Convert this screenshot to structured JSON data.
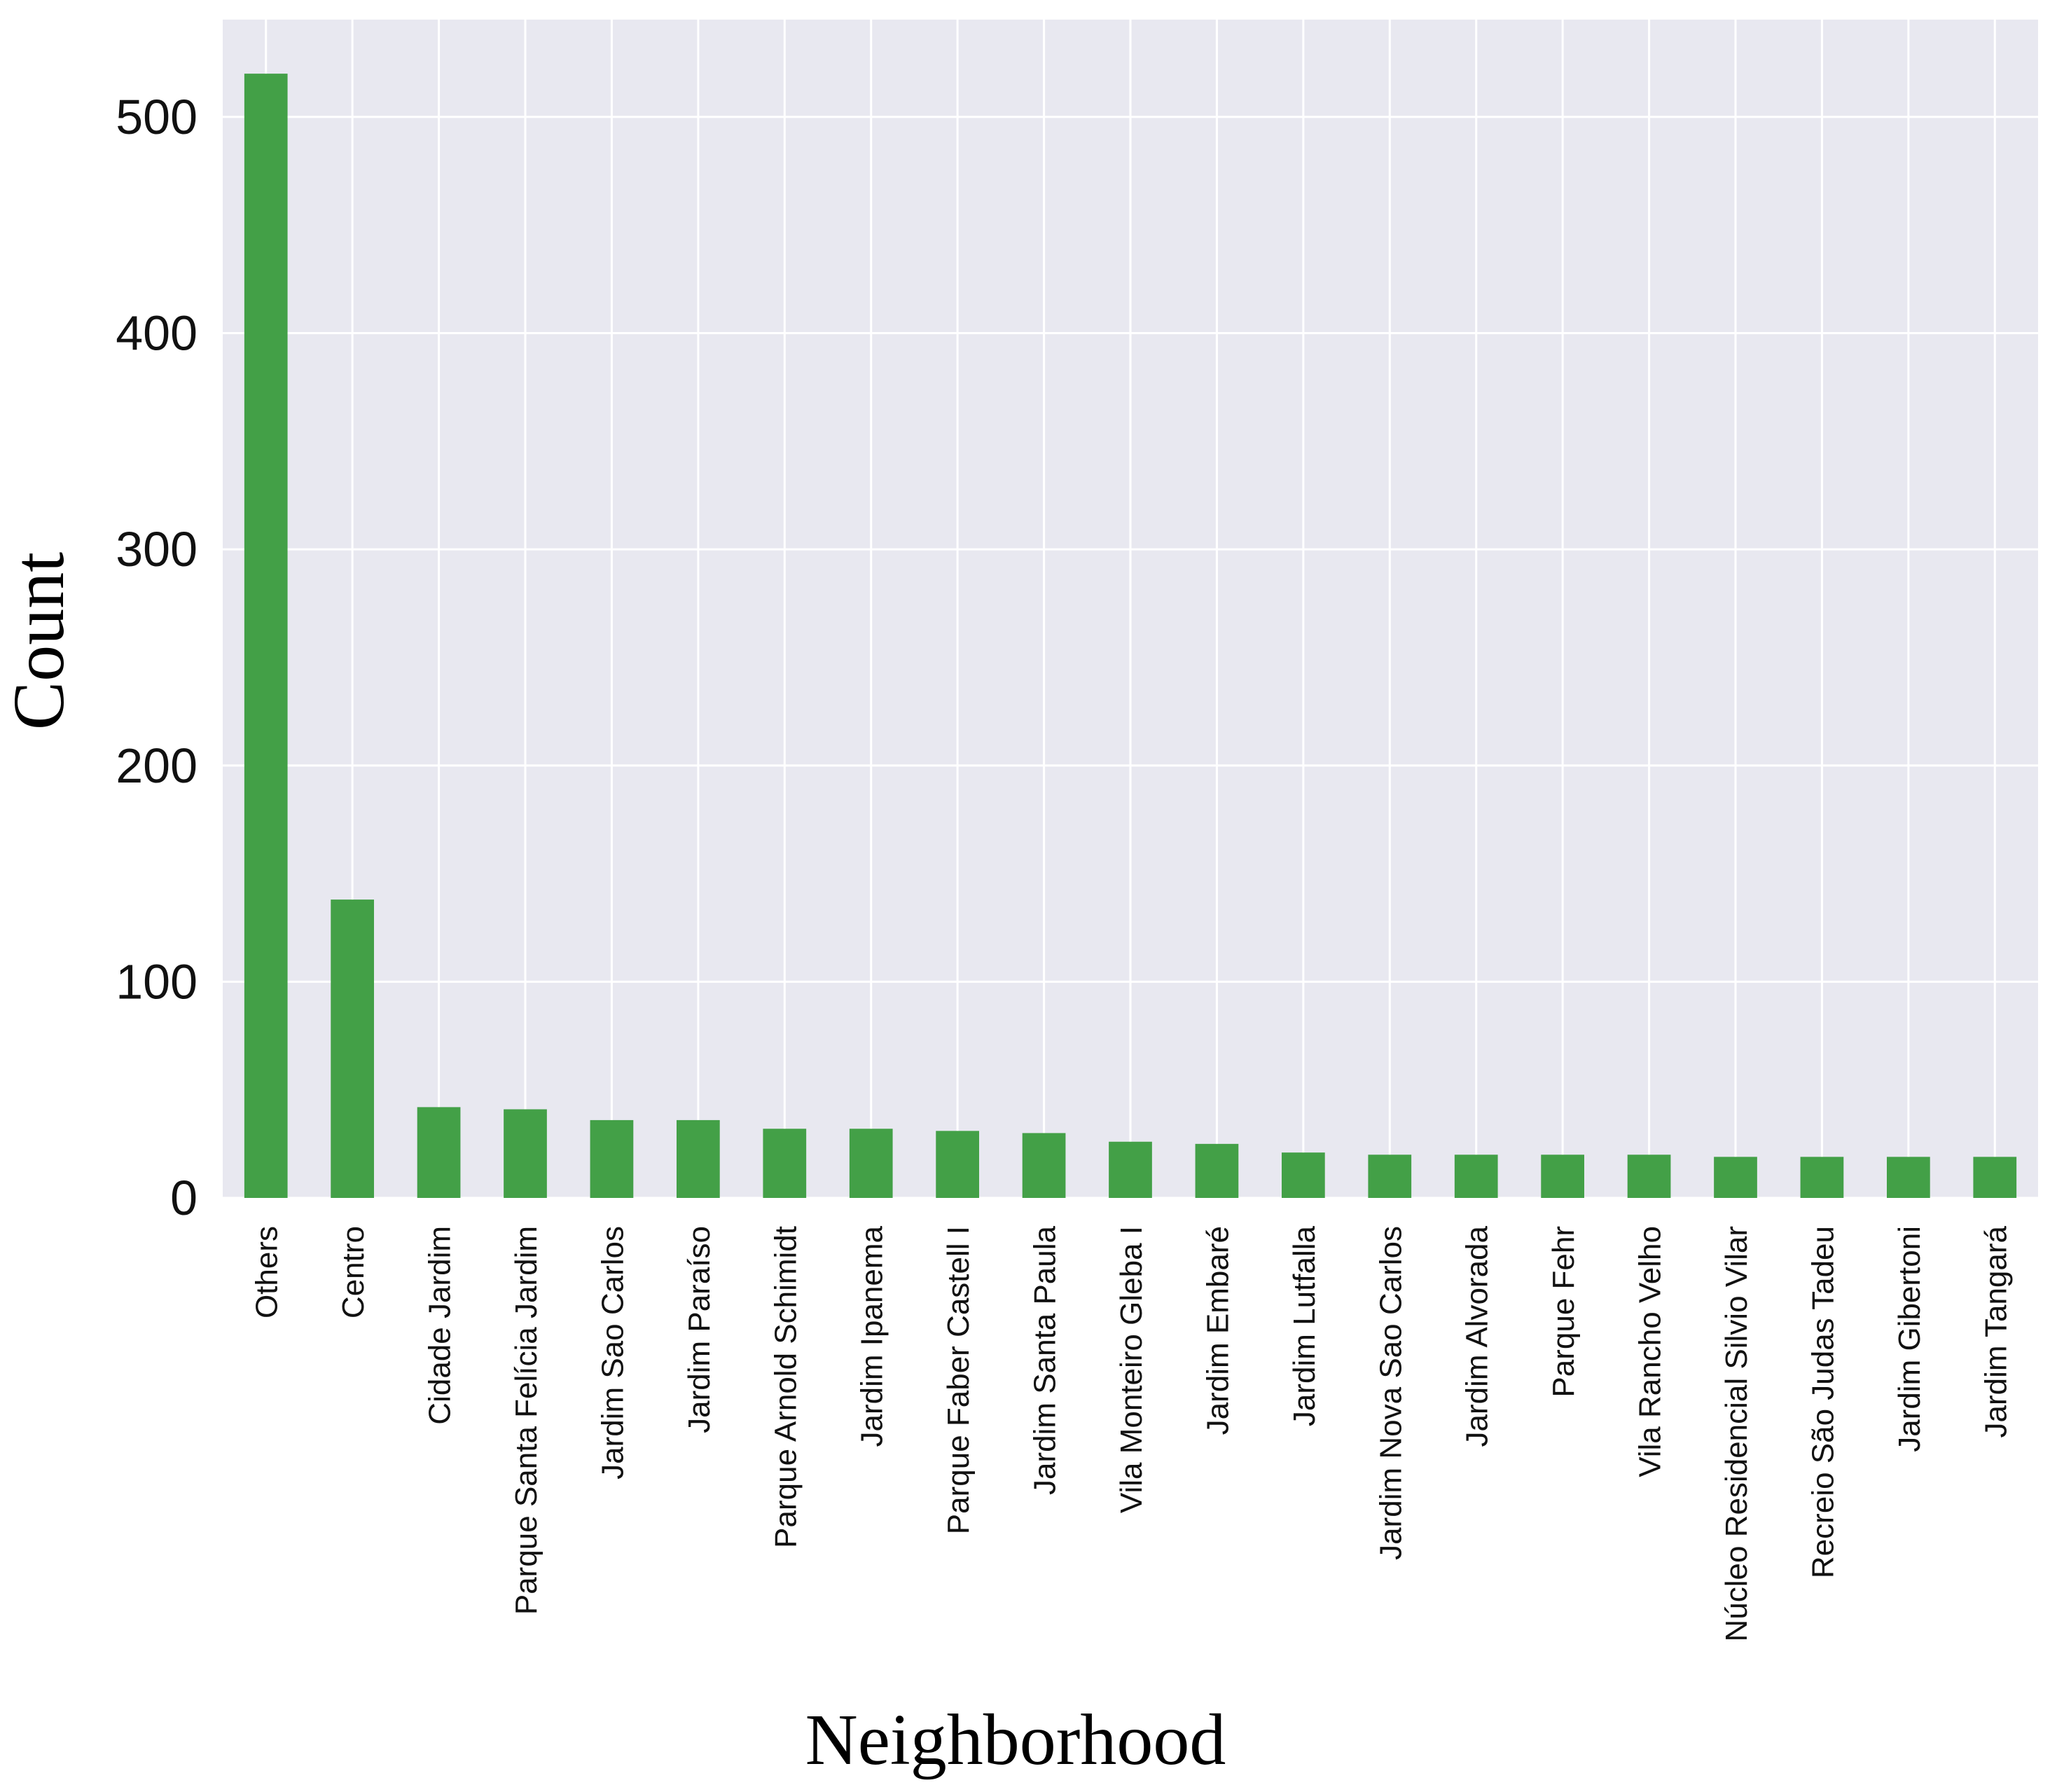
{
  "chart_data": {
    "type": "bar",
    "title": "",
    "xlabel": "Neighborhood",
    "ylabel": "Count",
    "ylim": [
      0,
      545
    ],
    "yticks": [
      0,
      100,
      200,
      300,
      400,
      500
    ],
    "grid": true,
    "bar_color": "#43a047",
    "background_color": "#e8e8f0",
    "categories": [
      "Others",
      "Centro",
      "Cidade Jardim",
      "Parque Santa Felícia Jardim",
      "Jardim Sao Carlos",
      "Jardim Paraíso",
      "Parque Arnold Schimidt",
      "Jardim Ipanema",
      "Parque Faber Castell I",
      "Jardim Santa Paula",
      "Vila Monteiro Gleba I",
      "Jardim Embaré",
      "Jardim Lutfalla",
      "Jardim Nova Sao Carlos",
      "Jardim Alvorada",
      "Parque Fehr",
      "Vila Rancho Velho",
      "Núcleo Residencial Silvio Vilar",
      "Recreio São Judas Tadeu",
      "Jardim Gibertoni",
      "Jardim Tangará"
    ],
    "values": [
      520,
      138,
      42,
      41,
      36,
      36,
      32,
      32,
      31,
      30,
      26,
      25,
      21,
      20,
      20,
      20,
      20,
      19,
      19,
      19,
      19
    ]
  }
}
